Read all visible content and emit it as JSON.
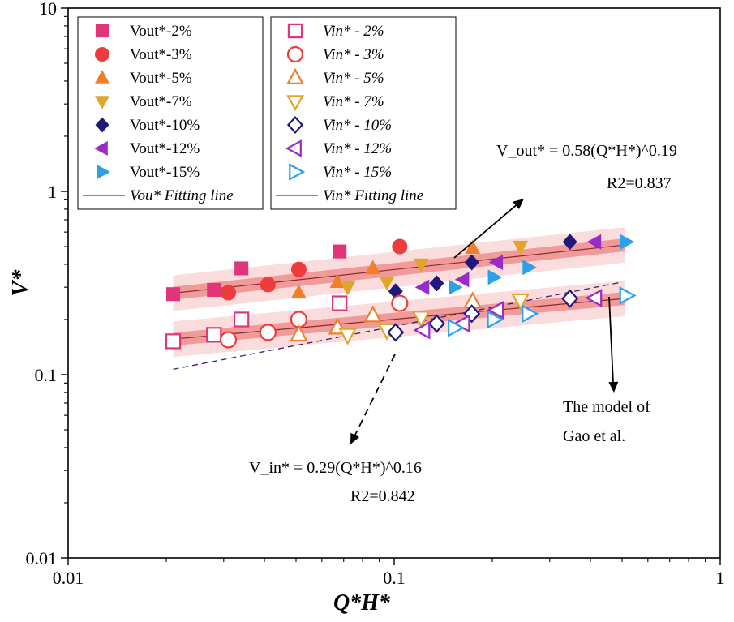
{
  "chart_data": {
    "type": "scatter",
    "xlabel": "Q*H*",
    "ylabel": "V*",
    "x_scale": "log",
    "y_scale": "log",
    "xlim": [
      0.01,
      1
    ],
    "ylim": [
      0.01,
      10
    ],
    "x_ticks": [
      "0.01",
      "0.1",
      "1"
    ],
    "y_ticks": [
      "0.01",
      "0.1",
      "1",
      "10"
    ],
    "legend_placement": "top-left",
    "series": [
      {
        "name": "Vout*-2%",
        "symbol": "square",
        "filled": true,
        "color": "#e0357a",
        "x": [
          0.021,
          0.028,
          0.034,
          0.068
        ],
        "y": [
          0.275,
          0.29,
          0.38,
          0.47
        ]
      },
      {
        "name": "Vout*-3%",
        "symbol": "circle",
        "filled": true,
        "color": "#ee3b3b",
        "x": [
          0.031,
          0.041,
          0.051,
          0.104
        ],
        "y": [
          0.28,
          0.31,
          0.375,
          0.5
        ]
      },
      {
        "name": "Vout*-5%",
        "symbol": "triangle-up",
        "filled": true,
        "color": "#f07f2c",
        "x": [
          0.051,
          0.067,
          0.086,
          0.174
        ],
        "y": [
          0.28,
          0.32,
          0.38,
          0.49
        ]
      },
      {
        "name": "Vout*-7%",
        "symbol": "triangle-down",
        "filled": true,
        "color": "#e0a52a",
        "x": [
          0.072,
          0.095,
          0.121,
          0.244
        ],
        "y": [
          0.3,
          0.32,
          0.4,
          0.5
        ]
      },
      {
        "name": "Vout*-10%",
        "symbol": "diamond",
        "filled": true,
        "color": "#1f1a7a",
        "x": [
          0.101,
          0.135,
          0.173,
          0.346
        ],
        "y": [
          0.285,
          0.315,
          0.41,
          0.53
        ]
      },
      {
        "name": "Vout*-12%",
        "symbol": "triangle-left",
        "filled": true,
        "color": "#9a2bc7",
        "x": [
          0.123,
          0.163,
          0.207,
          0.414
        ],
        "y": [
          0.3,
          0.33,
          0.41,
          0.53
        ]
      },
      {
        "name": "Vout*-15%",
        "symbol": "triangle-right",
        "filled": true,
        "color": "#2aa1e8",
        "x": [
          0.153,
          0.202,
          0.258,
          0.514
        ],
        "y": [
          0.3,
          0.34,
          0.385,
          0.53
        ]
      },
      {
        "name": "Vin* - 2%",
        "symbol": "square",
        "filled": false,
        "color": "#e0357a",
        "x": [
          0.021,
          0.028,
          0.034,
          0.068
        ],
        "y": [
          0.152,
          0.165,
          0.2,
          0.245
        ]
      },
      {
        "name": "Vin* - 3%",
        "symbol": "circle",
        "filled": false,
        "color": "#ee3b3b",
        "x": [
          0.031,
          0.041,
          0.051,
          0.104
        ],
        "y": [
          0.155,
          0.17,
          0.2,
          0.245
        ]
      },
      {
        "name": "Vin* - 5%",
        "symbol": "triangle-up",
        "filled": false,
        "color": "#f07f2c",
        "x": [
          0.051,
          0.067,
          0.086,
          0.174
        ],
        "y": [
          0.165,
          0.18,
          0.21,
          0.25
        ]
      },
      {
        "name": "Vin* - 7%",
        "symbol": "triangle-down",
        "filled": false,
        "color": "#e0a52a",
        "x": [
          0.072,
          0.095,
          0.121,
          0.244
        ],
        "y": [
          0.165,
          0.175,
          0.205,
          0.255
        ]
      },
      {
        "name": "Vin* - 10%",
        "symbol": "diamond",
        "filled": false,
        "color": "#1f1a7a",
        "x": [
          0.101,
          0.135,
          0.173,
          0.346
        ],
        "y": [
          0.17,
          0.19,
          0.215,
          0.26
        ]
      },
      {
        "name": "Vin* - 12%",
        "symbol": "triangle-left",
        "filled": false,
        "color": "#9a2bc7",
        "x": [
          0.123,
          0.163,
          0.207,
          0.414
        ],
        "y": [
          0.175,
          0.19,
          0.225,
          0.262
        ]
      },
      {
        "name": "Vin* - 15%",
        "symbol": "triangle-right",
        "filled": false,
        "color": "#2aa1e8",
        "x": [
          0.153,
          0.202,
          0.258,
          0.514
        ],
        "y": [
          0.18,
          0.2,
          0.215,
          0.27
        ]
      }
    ],
    "fit_lines": [
      {
        "name": "Vou* Fitting line",
        "coef": 0.58,
        "exp": 0.19,
        "x_range": [
          0.021,
          0.51
        ],
        "line_color": "#8a2a2a",
        "band_inner": "#f19a9a",
        "band_outer": "#fbdcdc",
        "equation": "V_out* = 0.58(Q*H*)^0.19",
        "r2": "R2=0.837"
      },
      {
        "name": "Vin* Fitting line",
        "coef": 0.29,
        "exp": 0.16,
        "x_range": [
          0.021,
          0.51
        ],
        "line_color": "#8a2a2a",
        "band_inner": "#f19a9a",
        "band_outer": "#fbdcdc",
        "equation": "V_in* = 0.29(Q*H*)^0.16",
        "r2": "R2=0.842"
      }
    ],
    "model_line": {
      "label_line1": "The model of",
      "label_line2": "Gao et al.",
      "color": "#3a1f6b",
      "x": [
        0.021,
        0.5
      ],
      "y": [
        0.107,
        0.32
      ]
    },
    "legend_col1": [
      "Vout*-2%",
      "Vout*-3%",
      "Vout*-5%",
      "Vout*-7%",
      "Vout*-10%",
      "Vout*-12%",
      "Vout*-15%",
      "Vou* Fitting line"
    ],
    "legend_col2": [
      "Vin* - 2%",
      "Vin* - 3%",
      "Vin* - 5%",
      "Vin* - 7%",
      "Vin* - 10%",
      "Vin* - 12%",
      "Vin* - 15%",
      "Vin* Fitting line"
    ]
  }
}
